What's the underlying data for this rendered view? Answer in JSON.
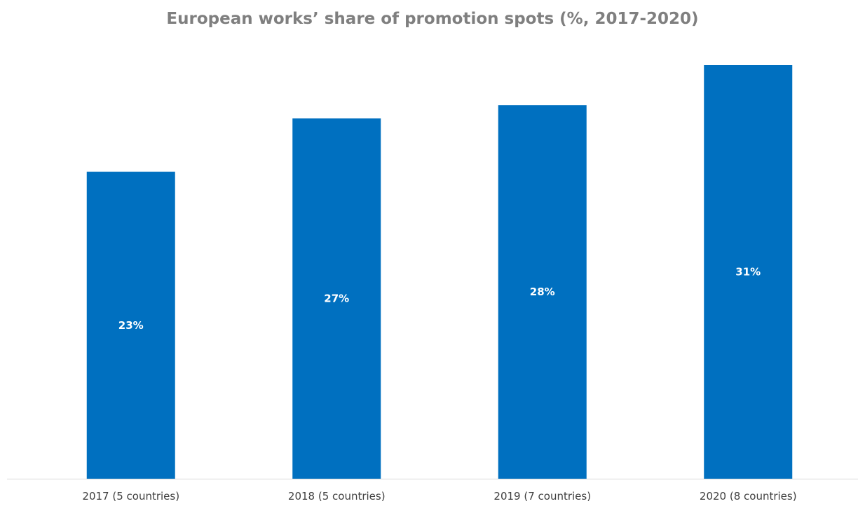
{
  "chart_data": {
    "type": "bar",
    "title": "European works’ share of promotion spots (%, 2017-2020)",
    "categories": [
      "2017 (5 countries)",
      "2018 (5 countries)",
      "2019 (7 countries)",
      "2020 (8 countries)"
    ],
    "values": [
      23,
      27,
      28,
      31
    ],
    "data_labels": [
      "23%",
      "27%",
      "28%",
      "31%"
    ],
    "ylim": [
      0,
      31
    ],
    "grid": false,
    "legend": "none",
    "colors": {
      "bar": "#0070c0",
      "title": "#7f7f7f",
      "axis": "#d9d9d9",
      "tick_text": "#404040",
      "data_label": "#ffffff"
    }
  }
}
